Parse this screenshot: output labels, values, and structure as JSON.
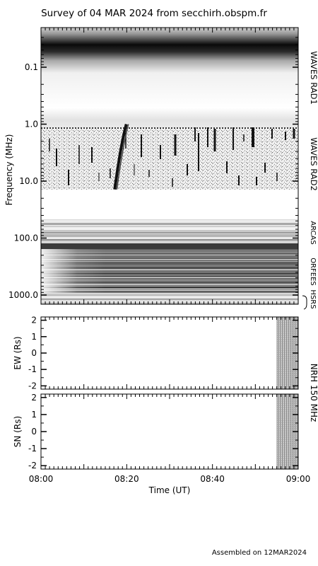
{
  "title": "Survey of 04 MAR 2024 from secchirh.obspm.fr",
  "footer": "Assembled on 12MAR2024",
  "chart_data": [
    {
      "type": "heatmap",
      "panel": "dynamic-spectrum",
      "ylabel": "Frequency (MHz)",
      "yscale": "log",
      "yreversed": true,
      "ylim": [
        0.02,
        1500
      ],
      "xlim": [
        "08:00",
        "09:00"
      ],
      "yticks": [
        {
          "v": 0.1,
          "label": "0.1"
        },
        {
          "v": 1,
          "label": "1.0"
        },
        {
          "v": 10,
          "label": "10.0"
        },
        {
          "v": 100,
          "label": "100.0"
        },
        {
          "v": 1000,
          "label": "1000.0"
        }
      ],
      "instruments": [
        {
          "label": "WAVES RAD1",
          "range_mhz": [
            0.02,
            1.0
          ]
        },
        {
          "label": "WAVES RAD2",
          "range_mhz": [
            1.0,
            14.0
          ]
        },
        {
          "label": "ARCAS",
          "range_mhz": [
            45,
            110
          ]
        },
        {
          "label": "ORFEES",
          "range_mhz": [
            140,
            1000
          ]
        },
        {
          "label": "HSRS",
          "range_mhz": [
            1000,
            1500
          ]
        }
      ],
      "bursts": [
        {
          "t": 17.6,
          "f_start": 1.0,
          "f_end": 14.0,
          "type": "drifting"
        }
      ]
    },
    {
      "type": "heatmap",
      "panel": "nrh-ew",
      "ylabel": "EW (Rs)",
      "ylim": [
        -2.2,
        2.2
      ],
      "yticks": [
        2,
        1,
        0,
        -1,
        -2
      ],
      "data_coverage": [
        "08:54",
        "09:00"
      ]
    },
    {
      "type": "heatmap",
      "panel": "nrh-ns",
      "ylabel": "SN (Rs)",
      "ylim": [
        -2.2,
        2.2
      ],
      "yticks": [
        2,
        1,
        0,
        -1,
        -2
      ],
      "data_coverage": [
        "08:54",
        "09:00"
      ]
    }
  ],
  "nrh_label": "NRH 150 MHz",
  "xaxis": {
    "xlabel": "Time (UT)",
    "ticks": [
      {
        "t": 0,
        "label": "08:00"
      },
      {
        "t": 20,
        "label": "08:20"
      },
      {
        "t": 40,
        "label": "08:40"
      },
      {
        "t": 60,
        "label": "09:00"
      }
    ]
  }
}
